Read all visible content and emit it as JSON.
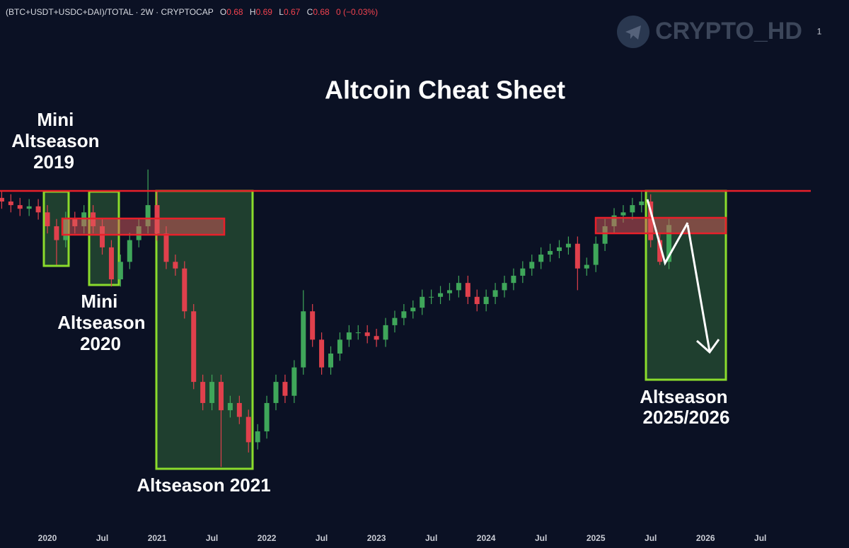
{
  "header": {
    "symbol": "(BTC+USDT+USDC+DAI)/TOTAL · 2W · CRYPTOCAP",
    "open_label": "O",
    "open": 0.68,
    "high_label": "H",
    "high": 0.69,
    "low_label": "L",
    "low": 0.67,
    "close_label": "C",
    "close": 0.68,
    "change": "0 (−0.03%)"
  },
  "watermark": "CRYPTO_HD",
  "chart_data": {
    "type": "candlestick",
    "title": "Altcoin Cheat Sheet",
    "annotations": {
      "mini_2019": [
        "Mini",
        "Altseason",
        "2019"
      ],
      "mini_2020": [
        "Mini",
        "Altseason",
        "2020"
      ],
      "alt_2021": "Altseason 2021",
      "alt_2025": [
        "Altseason",
        "2025/2026"
      ]
    },
    "up_color": "#3fa65a",
    "down_color": "#e0404c",
    "x": [
      "2019-08",
      "2019-09",
      "2019-10",
      "2019-11",
      "2019-12",
      "2020-01",
      "2020-02",
      "2020-03",
      "2020-04",
      "2020-05",
      "2020-06",
      "2020-07",
      "2020-08",
      "2020-09",
      "2020-10",
      "2020-11",
      "2020-12",
      "2021-01",
      "2021-02",
      "2021-03",
      "2021-04",
      "2021-05",
      "2021-06",
      "2021-07",
      "2021-08",
      "2021-09",
      "2021-10",
      "2021-11",
      "2021-12",
      "2022-01",
      "2022-02",
      "2022-03",
      "2022-04",
      "2022-05",
      "2022-06",
      "2022-07",
      "2022-08",
      "2022-09",
      "2022-10",
      "2022-11",
      "2022-12",
      "2023-01",
      "2023-02",
      "2023-03",
      "2023-04",
      "2023-05",
      "2023-06",
      "2023-07",
      "2023-08",
      "2023-09",
      "2023-10",
      "2023-11",
      "2023-12",
      "2024-01",
      "2024-02",
      "2024-03",
      "2024-04",
      "2024-05",
      "2024-06",
      "2024-07",
      "2024-08",
      "2024-09",
      "2024-10",
      "2024-11",
      "2024-12",
      "2025-01",
      "2025-02",
      "2025-03",
      "2025-04",
      "2025-05",
      "2025-06",
      "2025-07",
      "2025-08",
      "2025-09"
    ],
    "open": [
      0.725,
      0.719,
      0.713,
      0.707,
      0.711,
      0.701,
      0.678,
      0.655,
      0.69,
      0.678,
      0.701,
      0.678,
      0.643,
      0.59,
      0.619,
      0.655,
      0.678,
      0.713,
      0.666,
      0.619,
      0.608,
      0.537,
      0.42,
      0.385,
      0.42,
      0.373,
      0.385,
      0.362,
      0.32,
      0.338,
      0.385,
      0.42,
      0.397,
      0.444,
      0.537,
      0.49,
      0.444,
      0.467,
      0.49,
      0.502,
      0.502,
      0.496,
      0.49,
      0.514,
      0.526,
      0.537,
      0.543,
      0.561,
      0.561,
      0.567,
      0.572,
      0.584,
      0.561,
      0.549,
      0.561,
      0.572,
      0.584,
      0.596,
      0.608,
      0.619,
      0.631,
      0.637,
      0.643,
      0.649,
      0.608,
      0.614,
      0.649,
      0.678,
      0.696,
      0.701,
      0.713,
      0.719,
      0.655,
      0.619
    ],
    "high": [
      0.737,
      0.731,
      0.725,
      0.723,
      0.723,
      0.713,
      0.69,
      0.702,
      0.702,
      0.713,
      0.713,
      0.69,
      0.655,
      0.631,
      0.667,
      0.69,
      0.772,
      0.737,
      0.678,
      0.631,
      0.62,
      0.549,
      0.432,
      0.432,
      0.432,
      0.397,
      0.397,
      0.374,
      0.35,
      0.397,
      0.432,
      0.432,
      0.456,
      0.572,
      0.549,
      0.502,
      0.479,
      0.502,
      0.514,
      0.514,
      0.514,
      0.508,
      0.526,
      0.538,
      0.549,
      0.555,
      0.573,
      0.573,
      0.579,
      0.584,
      0.596,
      0.596,
      0.573,
      0.573,
      0.584,
      0.596,
      0.608,
      0.62,
      0.631,
      0.643,
      0.649,
      0.655,
      0.661,
      0.661,
      0.626,
      0.661,
      0.69,
      0.708,
      0.713,
      0.725,
      0.737,
      0.731,
      0.667,
      0.69
    ],
    "low": [
      0.707,
      0.701,
      0.695,
      0.695,
      0.689,
      0.666,
      0.614,
      0.643,
      0.666,
      0.666,
      0.666,
      0.631,
      0.578,
      0.578,
      0.607,
      0.643,
      0.666,
      0.654,
      0.607,
      0.596,
      0.525,
      0.408,
      0.373,
      0.373,
      0.279,
      0.361,
      0.35,
      0.303,
      0.308,
      0.326,
      0.373,
      0.385,
      0.385,
      0.432,
      0.478,
      0.432,
      0.432,
      0.455,
      0.478,
      0.49,
      0.484,
      0.478,
      0.478,
      0.502,
      0.514,
      0.525,
      0.531,
      0.549,
      0.549,
      0.555,
      0.56,
      0.549,
      0.537,
      0.537,
      0.549,
      0.56,
      0.572,
      0.584,
      0.596,
      0.607,
      0.619,
      0.625,
      0.631,
      0.572,
      0.596,
      0.602,
      0.637,
      0.666,
      0.684,
      0.689,
      0.701,
      0.643,
      0.614,
      0.607
    ],
    "close": [
      0.719,
      0.713,
      0.707,
      0.711,
      0.701,
      0.678,
      0.655,
      0.69,
      0.678,
      0.701,
      0.678,
      0.643,
      0.59,
      0.619,
      0.655,
      0.678,
      0.713,
      0.666,
      0.619,
      0.608,
      0.537,
      0.42,
      0.385,
      0.42,
      0.373,
      0.385,
      0.362,
      0.32,
      0.338,
      0.385,
      0.42,
      0.397,
      0.444,
      0.537,
      0.49,
      0.444,
      0.467,
      0.49,
      0.502,
      0.502,
      0.496,
      0.49,
      0.514,
      0.526,
      0.537,
      0.543,
      0.561,
      0.561,
      0.567,
      0.572,
      0.584,
      0.561,
      0.549,
      0.561,
      0.572,
      0.584,
      0.596,
      0.608,
      0.619,
      0.631,
      0.637,
      0.643,
      0.649,
      0.608,
      0.614,
      0.649,
      0.678,
      0.696,
      0.701,
      0.713,
      0.719,
      0.655,
      0.619,
      0.68
    ],
    "xlim": [
      "2019-07",
      "2026-11"
    ],
    "xticks": [
      {
        "value": "2020-01",
        "label": "2020"
      },
      {
        "value": "2020-07",
        "label": "Jul"
      },
      {
        "value": "2021-01",
        "label": "2021"
      },
      {
        "value": "2021-07",
        "label": "Jul"
      },
      {
        "value": "2022-01",
        "label": "2022"
      },
      {
        "value": "2022-07",
        "label": "Jul"
      },
      {
        "value": "2023-01",
        "label": "2023"
      },
      {
        "value": "2023-07",
        "label": "Jul"
      },
      {
        "value": "2024-01",
        "label": "2024"
      },
      {
        "value": "2024-07",
        "label": "Jul"
      },
      {
        "value": "2025-01",
        "label": "2025"
      },
      {
        "value": "2025-07",
        "label": "Jul"
      },
      {
        "value": "2026-01",
        "label": "2026"
      },
      {
        "value": "2026-07",
        "label": "Jul"
      }
    ],
    "ylim": [
      0.185,
      1.053
    ],
    "yticks": [
      1
    ],
    "grid": false
  }
}
